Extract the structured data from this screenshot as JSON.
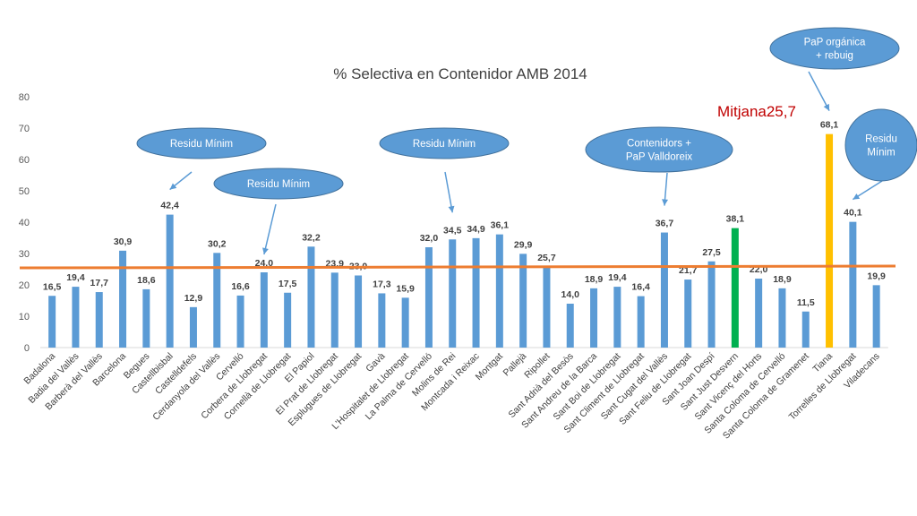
{
  "chart_data": {
    "type": "bar",
    "title": "% Selectiva en Contenidor AMB 2014",
    "ylim": [
      0,
      80
    ],
    "yticks": [
      0,
      10,
      20,
      30,
      40,
      50,
      60,
      70,
      80
    ],
    "grid": false,
    "average": {
      "label": "Mitjana25,7",
      "value": 25.7,
      "color": "#ed7d31"
    },
    "categories": [
      "Badalona",
      "Badia del Vallès",
      "Barberà del Vallès",
      "Barcelona",
      "Begues",
      "Castellbisbal",
      "Castelldefels",
      "Cerdanyola del Vallès",
      "Cervelló",
      "Corbera de Llobregat",
      "Cornellà de Llobregat",
      "El Papiol",
      "El Prat de Llobregat",
      "Esplugues de Llobregat",
      "Gavà",
      "L'Hospitalet de Llobregat",
      "La Palma de Cervelló",
      "Molins de Rei",
      "Montcada i Reixac",
      "Montgat",
      "Pallejà",
      "Ripollet",
      "Sant Adrià del Besòs",
      "Sant Andreu de la Barca",
      "Sant Boi de Llobregat",
      "Sant Climent de Llobregat",
      "Sant Cugat del Vallès",
      "Sant Feliu de Llobregat",
      "Sant Joan Despí",
      "Sant Just Desvern",
      "Sant Vicenç del Horts",
      "Santa Coloma de Cervelló",
      "Santa Coloma de Gramenet",
      "Tiana",
      "Torrelles de Llobregat",
      "Viladecans"
    ],
    "values": [
      16.5,
      19.4,
      17.7,
      30.9,
      18.6,
      42.4,
      12.9,
      30.2,
      16.6,
      24.0,
      17.5,
      32.2,
      23.9,
      23.0,
      17.3,
      15.9,
      32.0,
      34.5,
      34.9,
      36.1,
      29.9,
      25.7,
      14.0,
      18.9,
      19.4,
      16.4,
      36.7,
      21.7,
      27.5,
      38.1,
      22.0,
      18.9,
      11.5,
      68.1,
      40.1,
      19.9
    ],
    "value_labels": [
      "16,5",
      "19,4",
      "17,7",
      "30,9",
      "18,6",
      "42,4",
      "12,9",
      "30,2",
      "16,6",
      "24,0",
      "17,5",
      "32,2",
      "23,9",
      "23,0",
      "17,3",
      "15,9",
      "32,0",
      "34,5",
      "34,9",
      "36,1",
      "29,9",
      "25,7",
      "14,0",
      "18,9",
      "19,4",
      "16,4",
      "36,7",
      "21,7",
      "27,5",
      "38,1",
      "22,0",
      "18,9",
      "11,5",
      "68,1",
      "40,1",
      "19,9"
    ],
    "colors": {
      "default": "#5b9bd5",
      "highlight_green": "#00b050",
      "highlight_yellow": "#ffc000",
      "callout_fill": "#5b9bd5",
      "callout_stroke": "#41719c"
    },
    "highlighted": [
      {
        "category": "Sant Just Desvern",
        "color": "#00b050"
      },
      {
        "category": "Tiana",
        "color": "#ffc000"
      }
    ],
    "annotations": [
      {
        "lines": [
          "Residu Mínim"
        ],
        "target": "Castellbisbal"
      },
      {
        "lines": [
          "Residu Mínim"
        ],
        "target": "Corbera de Llobregat"
      },
      {
        "lines": [
          "Residu Mínim"
        ],
        "target": "Molins de Rei"
      },
      {
        "lines": [
          "Contenidors +",
          "PaP Valldoreix"
        ],
        "target": "Sant Cugat del Vallès"
      },
      {
        "lines": [
          "PaP orgánica",
          "+ rebuig"
        ],
        "target": "Tiana"
      },
      {
        "lines": [
          "Residu",
          "Mínim"
        ],
        "target": "Torrelles de Llobregat"
      }
    ]
  }
}
